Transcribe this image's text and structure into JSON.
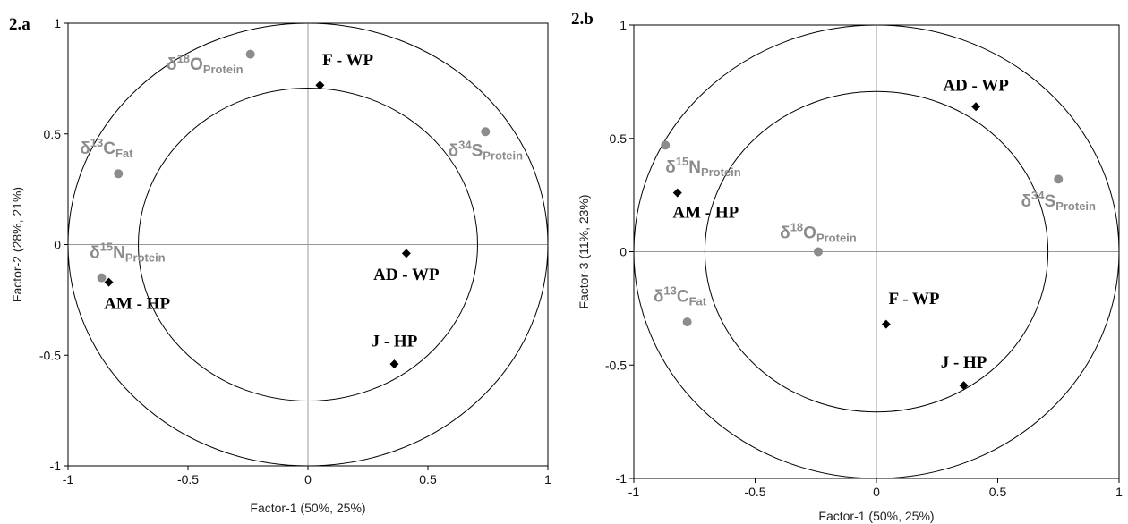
{
  "chart_data": [
    {
      "id": "a",
      "type": "scatter",
      "panel_label": "2.a",
      "xlabel": "Factor-1 (50%, 25%)",
      "ylabel": "Factor-2 (28%, 21%)",
      "xlim": [
        -1,
        1
      ],
      "ylim": [
        -1,
        1
      ],
      "xticks": [
        "-1",
        "-0.5",
        "0",
        "0.5",
        "1"
      ],
      "yticks": [
        "-1",
        "-0.5",
        "0",
        "0.5",
        "1"
      ],
      "circles": [
        1.0,
        0.707
      ],
      "grid": false,
      "variables": [
        {
          "main": "δ",
          "sup": "18",
          "el": "O",
          "sub": "Protein",
          "x": -0.24,
          "y": 0.86,
          "anchor": "end",
          "lx": -0.03,
          "ly": -0.07
        },
        {
          "main": "δ",
          "sup": "34",
          "el": "S",
          "sub": "Protein",
          "x": 0.74,
          "y": 0.51,
          "anchor": "middle",
          "lx": 0.0,
          "ly": -0.11
        },
        {
          "main": "δ",
          "sup": "13",
          "el": "C",
          "sub": "Fat",
          "x": -0.79,
          "y": 0.32,
          "anchor": "middle",
          "lx": -0.05,
          "ly": 0.09
        },
        {
          "main": "δ",
          "sup": "15",
          "el": "N",
          "sub": "Protein",
          "x": -0.86,
          "y": -0.15,
          "anchor": "start",
          "lx": -0.05,
          "ly": 0.09
        }
      ],
      "observations": [
        {
          "label": "F - WP",
          "x": 0.05,
          "y": 0.72,
          "anchor": "start",
          "lx": 0.01,
          "ly": 0.09
        },
        {
          "label": "AD - WP",
          "x": 0.41,
          "y": -0.04,
          "anchor": "middle",
          "lx": 0.0,
          "ly": -0.12
        },
        {
          "label": "AM - HP",
          "x": -0.83,
          "y": -0.17,
          "anchor": "start",
          "lx": -0.02,
          "ly": -0.12
        },
        {
          "label": "J - HP",
          "x": 0.36,
          "y": -0.54,
          "anchor": "middle",
          "lx": 0.0,
          "ly": 0.08
        }
      ]
    },
    {
      "id": "b",
      "type": "scatter",
      "panel_label": "2.b",
      "xlabel": "Factor-1 (50%, 25%)",
      "ylabel": "Factor-3 (11%, 23%)",
      "xlim": [
        -1,
        1
      ],
      "ylim": [
        -1,
        1
      ],
      "xticks": [
        "-1",
        "-0.5",
        "0",
        "0.5",
        "1"
      ],
      "yticks": [
        "-1",
        "-0.5",
        "0",
        "0.5",
        "1"
      ],
      "circles": [
        1.0,
        0.707
      ],
      "grid": false,
      "variables": [
        {
          "main": "δ",
          "sup": "15",
          "el": "N",
          "sub": "Protein",
          "x": -0.87,
          "y": 0.47,
          "anchor": "start",
          "lx": 0.0,
          "ly": -0.12
        },
        {
          "main": "δ",
          "sup": "34",
          "el": "S",
          "sub": "Protein",
          "x": 0.75,
          "y": 0.32,
          "anchor": "middle",
          "lx": 0.0,
          "ly": -0.12
        },
        {
          "main": "δ",
          "sup": "18",
          "el": "O",
          "sub": "Protein",
          "x": -0.24,
          "y": 0.0,
          "anchor": "middle",
          "lx": 0.0,
          "ly": 0.06
        },
        {
          "main": "δ",
          "sup": "13",
          "el": "C",
          "sub": "Fat",
          "x": -0.78,
          "y": -0.31,
          "anchor": "middle",
          "lx": -0.03,
          "ly": 0.09
        }
      ],
      "observations": [
        {
          "label": "AD - WP",
          "x": 0.41,
          "y": 0.64,
          "anchor": "middle",
          "lx": 0.0,
          "ly": 0.07
        },
        {
          "label": "AM - HP",
          "x": -0.82,
          "y": 0.26,
          "anchor": "start",
          "lx": -0.02,
          "ly": -0.11
        },
        {
          "label": "F - WP",
          "x": 0.04,
          "y": -0.32,
          "anchor": "start",
          "lx": 0.01,
          "ly": 0.09
        },
        {
          "label": "J - HP",
          "x": 0.36,
          "y": -0.59,
          "anchor": "middle",
          "lx": 0.0,
          "ly": 0.08
        }
      ]
    }
  ]
}
